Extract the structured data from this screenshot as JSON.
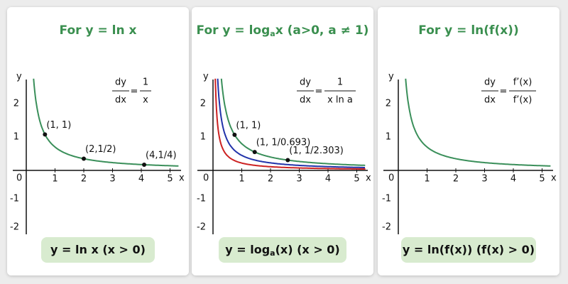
{
  "panels": [
    {
      "title": {
        "text": "For y = ln x"
      },
      "derivative": {
        "lhs_num": "dy",
        "lhs_den": "dx",
        "equals": "=",
        "rhs_num": "1",
        "rhs_den": "x"
      },
      "axis": {
        "x_label": "x",
        "y_label": "y",
        "origin": "0",
        "x_ticks": [
          "1",
          "2",
          "3",
          "4",
          "5"
        ],
        "y_ticks": [
          "2",
          "1",
          "-1",
          "-2"
        ]
      },
      "points": [
        "(1, 1)",
        "(2,1/2)",
        "(4,1/4)"
      ],
      "formula": {
        "text": "y = ln x (x > 0)"
      }
    },
    {
      "title": {
        "text": "For y = log",
        "sub": "a",
        "rest": "x (a>0, a ≠ 1)"
      },
      "derivative": {
        "lhs_num": "dy",
        "lhs_den": "dx",
        "equals": "=",
        "rhs_num": "1",
        "rhs_den": "x ln a"
      },
      "axis": {
        "x_label": "x",
        "y_label": "y",
        "origin": "0",
        "x_ticks": [
          "1",
          "2",
          "3",
          "4",
          "5"
        ],
        "y_ticks": [
          "2",
          "1",
          "-1",
          "-2"
        ]
      },
      "points": [
        "(1, 1)",
        "(1, 1/0.693)",
        "(1, 1/2.303)"
      ],
      "formula": {
        "text": "y = log",
        "sub": "a",
        "rest": "(x)   (x > 0)"
      }
    },
    {
      "title": {
        "text": "For y = ln(f(x))"
      },
      "derivative": {
        "lhs_num": "dy",
        "lhs_den": "dx",
        "equals": "=",
        "rhs_num": "f’(x)",
        "rhs_den": "f’(x)"
      },
      "axis": {
        "x_label": "x",
        "y_label": "y",
        "origin": "0",
        "x_ticks": [
          "1",
          "2",
          "3",
          "4",
          "5"
        ],
        "y_ticks": [
          "2",
          "1",
          "-1",
          "-2"
        ]
      },
      "points": [],
      "formula": {
        "text": "y = ln(f(x)) (f(x) > 0)"
      }
    }
  ]
}
